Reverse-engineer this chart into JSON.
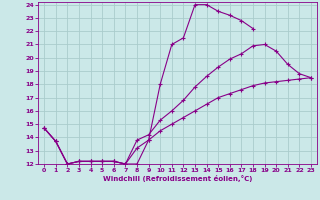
{
  "xlabel": "Windchill (Refroidissement éolien,°C)",
  "bg_color": "#cbe8e8",
  "line_color": "#880088",
  "grid_color": "#aacccc",
  "xlim": [
    -0.5,
    23.5
  ],
  "ylim": [
    12,
    24.2
  ],
  "xticks": [
    0,
    1,
    2,
    3,
    4,
    5,
    6,
    7,
    8,
    9,
    10,
    11,
    12,
    13,
    14,
    15,
    16,
    17,
    18,
    19,
    20,
    21,
    22,
    23
  ],
  "yticks": [
    12,
    13,
    14,
    15,
    16,
    17,
    18,
    19,
    20,
    21,
    22,
    23,
    24
  ],
  "lines": [
    {
      "x": [
        0,
        1,
        2,
        3,
        4,
        5,
        6,
        7,
        8,
        9,
        10,
        11,
        12,
        13,
        14,
        15,
        16,
        17,
        18,
        19,
        20,
        21,
        22,
        23
      ],
      "y": [
        14.7,
        13.7,
        12.0,
        12.2,
        12.2,
        12.2,
        12.2,
        12.0,
        12.0,
        13.8,
        18.0,
        21.0,
        21.5,
        24.0,
        24.0,
        23.5,
        23.2,
        22.8,
        22.2,
        null,
        null,
        null,
        null,
        null
      ]
    },
    {
      "x": [
        0,
        1,
        2,
        3,
        4,
        5,
        6,
        7,
        8,
        9,
        10,
        11,
        12,
        13,
        14,
        15,
        16,
        17,
        18,
        19,
        20,
        21,
        22,
        23
      ],
      "y": [
        14.7,
        13.7,
        12.0,
        12.2,
        12.2,
        12.2,
        12.2,
        12.0,
        13.8,
        14.2,
        15.3,
        16.0,
        16.8,
        17.8,
        18.6,
        19.3,
        19.9,
        20.3,
        20.9,
        21.0,
        20.5,
        19.5,
        18.8,
        18.5
      ]
    },
    {
      "x": [
        0,
        1,
        2,
        3,
        4,
        5,
        6,
        7,
        8,
        9,
        10,
        11,
        12,
        13,
        14,
        15,
        16,
        17,
        18,
        19,
        20,
        21,
        22,
        23
      ],
      "y": [
        14.7,
        13.7,
        12.0,
        12.2,
        12.2,
        12.2,
        12.2,
        12.0,
        13.2,
        13.8,
        14.5,
        15.0,
        15.5,
        16.0,
        16.5,
        17.0,
        17.3,
        17.6,
        17.9,
        18.1,
        18.2,
        18.3,
        18.4,
        18.5
      ]
    }
  ]
}
